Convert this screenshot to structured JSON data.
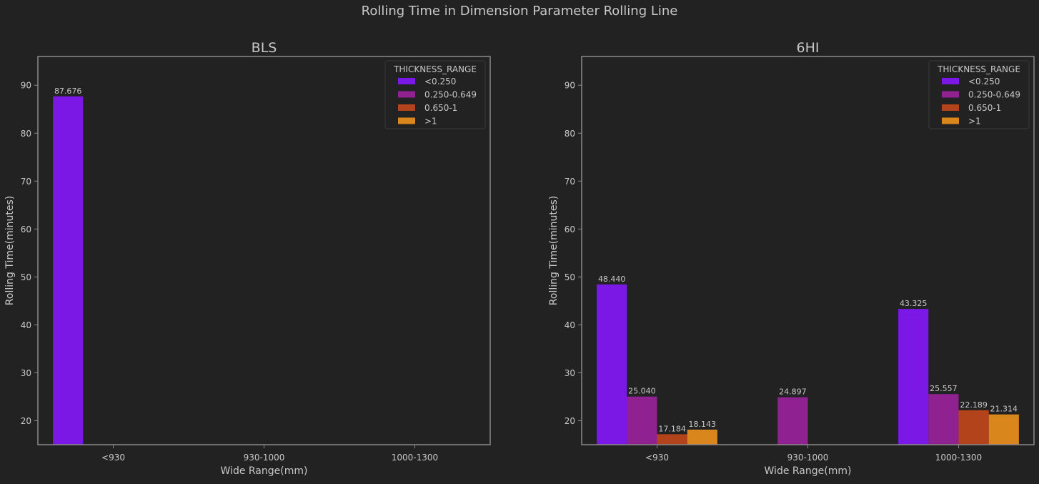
{
  "figure": {
    "suptitle": "Rolling Time in Dimension Parameter Rolling Line",
    "background": "#222222",
    "text_color": "#c8c8c8",
    "frame_color": "#8a8a8a"
  },
  "chart_data": [
    {
      "type": "bar",
      "title": "BLS",
      "xlabel": "Wide Range(mm)",
      "ylabel": "Rolling Time(minutes)",
      "categories": [
        "<930",
        "930-1000",
        "1000-1300"
      ],
      "ylim": [
        15,
        96
      ],
      "yticks": [
        20,
        30,
        40,
        50,
        60,
        70,
        80,
        90
      ],
      "grid": false,
      "legend": {
        "title": "THICKNESS_RANGE",
        "position": "top-right"
      },
      "series": [
        {
          "name": "<0.250",
          "color": "#7b18e6",
          "values": [
            87.676,
            null,
            null
          ],
          "labels": [
            "87.676",
            null,
            null
          ]
        },
        {
          "name": "0.250-0.649",
          "color": "#8f2290",
          "values": [
            null,
            null,
            null
          ],
          "labels": [
            null,
            null,
            null
          ]
        },
        {
          "name": "0.650-1",
          "color": "#b3431a",
          "values": [
            null,
            null,
            null
          ],
          "labels": [
            null,
            null,
            null
          ]
        },
        {
          "name": ">1",
          "color": "#d9861c",
          "values": [
            null,
            null,
            null
          ],
          "labels": [
            null,
            null,
            null
          ]
        }
      ]
    },
    {
      "type": "bar",
      "title": "6HI",
      "xlabel": "Wide Range(mm)",
      "ylabel": "Rolling Time(minutes)",
      "categories": [
        "<930",
        "930-1000",
        "1000-1300"
      ],
      "ylim": [
        15,
        96
      ],
      "yticks": [
        20,
        30,
        40,
        50,
        60,
        70,
        80,
        90
      ],
      "grid": false,
      "legend": {
        "title": "THICKNESS_RANGE",
        "position": "top-right"
      },
      "series": [
        {
          "name": "<0.250",
          "color": "#7b18e6",
          "values": [
            48.44,
            null,
            43.325
          ],
          "labels": [
            "48.440",
            null,
            "43.325"
          ]
        },
        {
          "name": "0.250-0.649",
          "color": "#8f2290",
          "values": [
            25.04,
            24.897,
            25.557
          ],
          "labels": [
            "25.040",
            "24.897",
            "25.557"
          ]
        },
        {
          "name": "0.650-1",
          "color": "#b3431a",
          "values": [
            17.184,
            null,
            22.189
          ],
          "labels": [
            "17.184",
            null,
            "22.189"
          ]
        },
        {
          "name": ">1",
          "color": "#d9861c",
          "values": [
            18.143,
            null,
            21.314
          ],
          "labels": [
            "18.143",
            null,
            "21.314"
          ]
        }
      ]
    }
  ]
}
